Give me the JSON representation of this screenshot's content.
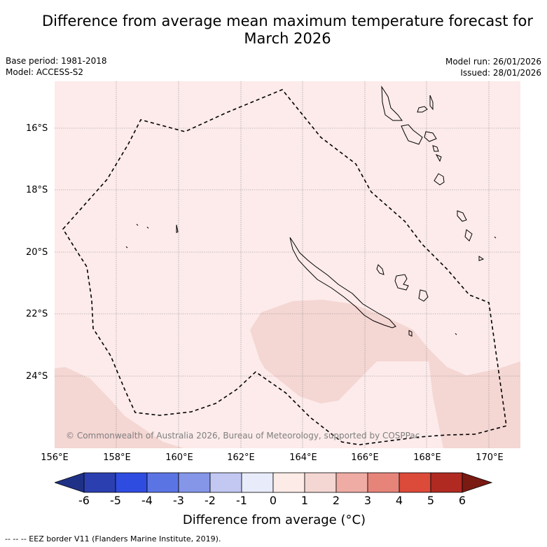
{
  "header": {
    "title_line1": "Difference from average mean maximum temperature forecast for",
    "title_line2": "March 2026",
    "base_period": "Base period: 1981-2018",
    "model": "Model: ACCESS-S2",
    "model_run": "Model run: 26/01/2026",
    "issued": "Issued: 28/01/2026"
  },
  "map": {
    "copyright": "© Commonwealth of Australia 2026, Bureau of Meteorology, supported by COSPPac",
    "lat_labels": [
      "16°S",
      "18°S",
      "20°S",
      "22°S",
      "24°S"
    ],
    "lon_labels": [
      "156°E",
      "158°E",
      "160°E",
      "162°E",
      "164°E",
      "166°E",
      "168°E",
      "170°E"
    ],
    "lat_range": [
      -26.3,
      -14.5
    ],
    "lon_range": [
      156,
      171
    ],
    "colors": {
      "anomaly_0_to_1": "#fcebea",
      "anomaly_1_to_2": "#f4d6d3",
      "grid": "#888888",
      "coast": "#000000",
      "eez": "#000000"
    }
  },
  "colorbar": {
    "ticks": [
      "-6",
      "-5",
      "-4",
      "-3",
      "-2",
      "-1",
      "0",
      "1",
      "2",
      "3",
      "4",
      "5",
      "6"
    ],
    "colors": [
      "#1f3186",
      "#2b3fb0",
      "#2f4ce0",
      "#5b74e4",
      "#8596e8",
      "#c2c8f2",
      "#e8ebf9",
      "#fcebe6",
      "#f4d6d3",
      "#eeaca4",
      "#e6847a",
      "#dc4a3a",
      "#b02a22",
      "#7a1a12"
    ],
    "label": "Difference from average (°C)"
  },
  "footer": {
    "legend_text": "--  --  -- EEZ border V11 (Flanders Marine Institute, 2019)."
  }
}
